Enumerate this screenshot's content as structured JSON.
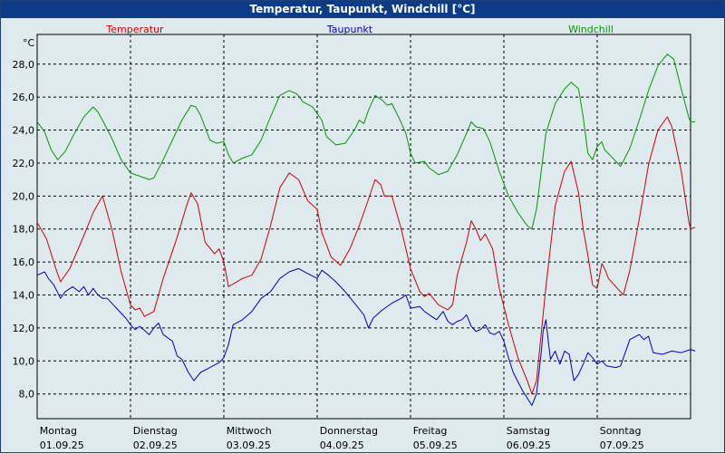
{
  "window": {
    "title": "Temperatur, Taupunkt, Windchill [°C]"
  },
  "chart_data": {
    "type": "line",
    "title": "Temperatur, Taupunkt, Windchill [°C]",
    "ylabel": "°C",
    "ylim": [
      6.5,
      29.8
    ],
    "xlim": [
      0,
      7
    ],
    "grid": true,
    "yticks": [
      8,
      10,
      12,
      14,
      16,
      18,
      20,
      22,
      24,
      26,
      28
    ],
    "ytick_labels": [
      "8,0",
      "10,0",
      "12,0",
      "14,0",
      "16,0",
      "18,0",
      "20,0",
      "22,0",
      "24,0",
      "26,0",
      "28,0"
    ],
    "x_day_labels": [
      {
        "day": "Montag",
        "date": "01.09.25"
      },
      {
        "day": "Dienstag",
        "date": "02.09.25"
      },
      {
        "day": "Mittwoch",
        "date": "03.09.25"
      },
      {
        "day": "Donnerstag",
        "date": "04.09.25"
      },
      {
        "day": "Freitag",
        "date": "05.09.25"
      },
      {
        "day": "Samstag",
        "date": "06.09.25"
      },
      {
        "day": "Sonntag",
        "date": "07.09.25"
      }
    ],
    "series": [
      {
        "name": "Temperatur",
        "color": "#cc0000",
        "points": [
          [
            0.0,
            18.4
          ],
          [
            0.1,
            17.4
          ],
          [
            0.2,
            15.6
          ],
          [
            0.25,
            14.8
          ],
          [
            0.35,
            15.6
          ],
          [
            0.5,
            17.6
          ],
          [
            0.6,
            19.0
          ],
          [
            0.7,
            20.0
          ],
          [
            0.8,
            18.0
          ],
          [
            0.9,
            15.4
          ],
          [
            1.0,
            13.4
          ],
          [
            1.05,
            13.1
          ],
          [
            1.1,
            13.2
          ],
          [
            1.15,
            12.7
          ],
          [
            1.25,
            13.0
          ],
          [
            1.35,
            15.0
          ],
          [
            1.5,
            17.5
          ],
          [
            1.6,
            19.4
          ],
          [
            1.65,
            20.2
          ],
          [
            1.72,
            19.5
          ],
          [
            1.8,
            17.2
          ],
          [
            1.9,
            16.5
          ],
          [
            1.95,
            16.8
          ],
          [
            2.0,
            16.0
          ],
          [
            2.05,
            14.5
          ],
          [
            2.2,
            15.0
          ],
          [
            2.3,
            15.2
          ],
          [
            2.4,
            16.2
          ],
          [
            2.5,
            18.2
          ],
          [
            2.6,
            20.5
          ],
          [
            2.7,
            21.4
          ],
          [
            2.8,
            21.0
          ],
          [
            2.9,
            19.7
          ],
          [
            3.0,
            19.2
          ],
          [
            3.05,
            17.8
          ],
          [
            3.15,
            16.3
          ],
          [
            3.25,
            15.8
          ],
          [
            3.35,
            16.8
          ],
          [
            3.45,
            18.2
          ],
          [
            3.55,
            19.8
          ],
          [
            3.62,
            21.0
          ],
          [
            3.68,
            20.7
          ],
          [
            3.72,
            20.0
          ],
          [
            3.8,
            20.0
          ],
          [
            3.9,
            18.0
          ],
          [
            4.0,
            15.6
          ],
          [
            4.1,
            14.2
          ],
          [
            4.15,
            13.9
          ],
          [
            4.2,
            14.1
          ],
          [
            4.3,
            13.4
          ],
          [
            4.4,
            13.1
          ],
          [
            4.45,
            13.4
          ],
          [
            4.5,
            15.2
          ],
          [
            4.6,
            17.2
          ],
          [
            4.65,
            18.5
          ],
          [
            4.7,
            18.0
          ],
          [
            4.75,
            17.3
          ],
          [
            4.8,
            17.7
          ],
          [
            4.88,
            16.8
          ],
          [
            4.95,
            14.4
          ],
          [
            5.05,
            12.2
          ],
          [
            5.15,
            10.2
          ],
          [
            5.25,
            8.8
          ],
          [
            5.3,
            8.0
          ],
          [
            5.35,
            8.8
          ],
          [
            5.45,
            14.5
          ],
          [
            5.55,
            19.4
          ],
          [
            5.65,
            21.5
          ],
          [
            5.72,
            22.1
          ],
          [
            5.8,
            20.2
          ],
          [
            5.85,
            18.0
          ],
          [
            5.9,
            16.4
          ],
          [
            5.95,
            14.6
          ],
          [
            6.0,
            14.4
          ],
          [
            6.05,
            15.9
          ],
          [
            6.08,
            15.6
          ],
          [
            6.12,
            15.0
          ],
          [
            6.2,
            14.5
          ],
          [
            6.28,
            14.0
          ],
          [
            6.35,
            15.5
          ],
          [
            6.45,
            18.6
          ],
          [
            6.55,
            21.9
          ],
          [
            6.65,
            24.0
          ],
          [
            6.75,
            24.8
          ],
          [
            6.8,
            24.2
          ],
          [
            6.9,
            21.5
          ],
          [
            6.98,
            18.5
          ],
          [
            7.0,
            18.0
          ],
          [
            7.05,
            18.1
          ]
        ]
      },
      {
        "name": "Taupunkt",
        "color": "#0000bb",
        "points": [
          [
            0.0,
            15.2
          ],
          [
            0.08,
            15.4
          ],
          [
            0.12,
            15.0
          ],
          [
            0.18,
            14.6
          ],
          [
            0.25,
            13.8
          ],
          [
            0.3,
            14.2
          ],
          [
            0.38,
            14.5
          ],
          [
            0.45,
            14.2
          ],
          [
            0.5,
            14.5
          ],
          [
            0.55,
            14.0
          ],
          [
            0.6,
            14.4
          ],
          [
            0.65,
            14.0
          ],
          [
            0.7,
            13.8
          ],
          [
            0.75,
            13.8
          ],
          [
            0.85,
            13.2
          ],
          [
            0.95,
            12.6
          ],
          [
            1.0,
            12.2
          ],
          [
            1.05,
            11.9
          ],
          [
            1.1,
            12.1
          ],
          [
            1.2,
            11.6
          ],
          [
            1.25,
            12.0
          ],
          [
            1.3,
            12.3
          ],
          [
            1.35,
            11.6
          ],
          [
            1.45,
            11.2
          ],
          [
            1.5,
            10.3
          ],
          [
            1.55,
            10.1
          ],
          [
            1.62,
            9.3
          ],
          [
            1.68,
            8.8
          ],
          [
            1.75,
            9.3
          ],
          [
            1.85,
            9.6
          ],
          [
            1.95,
            9.9
          ],
          [
            2.0,
            10.2
          ],
          [
            2.05,
            11.0
          ],
          [
            2.1,
            12.2
          ],
          [
            2.2,
            12.5
          ],
          [
            2.3,
            13.0
          ],
          [
            2.4,
            13.8
          ],
          [
            2.5,
            14.2
          ],
          [
            2.6,
            15.0
          ],
          [
            2.7,
            15.4
          ],
          [
            2.8,
            15.6
          ],
          [
            2.9,
            15.3
          ],
          [
            3.0,
            15.0
          ],
          [
            3.05,
            15.5
          ],
          [
            3.12,
            15.2
          ],
          [
            3.2,
            14.8
          ],
          [
            3.3,
            14.2
          ],
          [
            3.4,
            13.5
          ],
          [
            3.5,
            12.8
          ],
          [
            3.55,
            12.0
          ],
          [
            3.6,
            12.6
          ],
          [
            3.7,
            13.1
          ],
          [
            3.8,
            13.5
          ],
          [
            3.9,
            13.8
          ],
          [
            3.95,
            14.0
          ],
          [
            4.0,
            13.2
          ],
          [
            4.1,
            13.3
          ],
          [
            4.15,
            13.0
          ],
          [
            4.2,
            12.8
          ],
          [
            4.28,
            12.5
          ],
          [
            4.35,
            13.0
          ],
          [
            4.4,
            12.4
          ],
          [
            4.45,
            12.2
          ],
          [
            4.5,
            12.4
          ],
          [
            4.55,
            12.5
          ],
          [
            4.6,
            12.8
          ],
          [
            4.65,
            12.1
          ],
          [
            4.7,
            11.8
          ],
          [
            4.75,
            11.9
          ],
          [
            4.8,
            12.2
          ],
          [
            4.85,
            11.7
          ],
          [
            4.9,
            11.6
          ],
          [
            4.95,
            11.8
          ],
          [
            5.0,
            11.2
          ],
          [
            5.05,
            10.2
          ],
          [
            5.1,
            9.3
          ],
          [
            5.2,
            8.2
          ],
          [
            5.3,
            7.3
          ],
          [
            5.35,
            8.0
          ],
          [
            5.4,
            10.5
          ],
          [
            5.42,
            11.8
          ],
          [
            5.45,
            12.5
          ],
          [
            5.48,
            11.0
          ],
          [
            5.5,
            10.1
          ],
          [
            5.55,
            10.6
          ],
          [
            5.6,
            9.8
          ],
          [
            5.65,
            10.6
          ],
          [
            5.7,
            10.4
          ],
          [
            5.75,
            8.8
          ],
          [
            5.8,
            9.2
          ],
          [
            5.85,
            9.8
          ],
          [
            5.9,
            10.5
          ],
          [
            5.95,
            10.2
          ],
          [
            6.0,
            9.8
          ],
          [
            6.05,
            10.0
          ],
          [
            6.1,
            9.7
          ],
          [
            6.2,
            9.6
          ],
          [
            6.25,
            9.7
          ],
          [
            6.3,
            10.5
          ],
          [
            6.35,
            11.3
          ],
          [
            6.45,
            11.6
          ],
          [
            6.5,
            11.3
          ],
          [
            6.55,
            11.5
          ],
          [
            6.6,
            10.5
          ],
          [
            6.7,
            10.4
          ],
          [
            6.8,
            10.6
          ],
          [
            6.9,
            10.5
          ],
          [
            7.0,
            10.7
          ],
          [
            7.05,
            10.6
          ]
        ]
      },
      {
        "name": "Windchill",
        "color": "#009900",
        "points": [
          [
            0.0,
            24.5
          ],
          [
            0.08,
            23.9
          ],
          [
            0.15,
            22.8
          ],
          [
            0.22,
            22.2
          ],
          [
            0.3,
            22.7
          ],
          [
            0.4,
            23.8
          ],
          [
            0.5,
            24.8
          ],
          [
            0.6,
            25.4
          ],
          [
            0.65,
            25.1
          ],
          [
            0.7,
            24.6
          ],
          [
            0.8,
            23.5
          ],
          [
            0.9,
            22.2
          ],
          [
            1.0,
            21.4
          ],
          [
            1.1,
            21.2
          ],
          [
            1.2,
            21.0
          ],
          [
            1.25,
            21.1
          ],
          [
            1.35,
            22.2
          ],
          [
            1.45,
            23.4
          ],
          [
            1.55,
            24.6
          ],
          [
            1.65,
            25.5
          ],
          [
            1.7,
            25.4
          ],
          [
            1.75,
            24.9
          ],
          [
            1.85,
            23.4
          ],
          [
            1.92,
            23.2
          ],
          [
            2.0,
            23.3
          ],
          [
            2.05,
            22.5
          ],
          [
            2.1,
            22.0
          ],
          [
            2.2,
            22.3
          ],
          [
            2.3,
            22.5
          ],
          [
            2.4,
            23.4
          ],
          [
            2.5,
            24.8
          ],
          [
            2.6,
            26.1
          ],
          [
            2.7,
            26.4
          ],
          [
            2.78,
            26.2
          ],
          [
            2.85,
            25.7
          ],
          [
            2.95,
            25.4
          ],
          [
            3.0,
            25.0
          ],
          [
            3.05,
            24.6
          ],
          [
            3.1,
            23.6
          ],
          [
            3.2,
            23.1
          ],
          [
            3.3,
            23.2
          ],
          [
            3.4,
            24.0
          ],
          [
            3.45,
            24.6
          ],
          [
            3.5,
            24.4
          ],
          [
            3.55,
            25.2
          ],
          [
            3.62,
            26.1
          ],
          [
            3.7,
            25.8
          ],
          [
            3.75,
            25.5
          ],
          [
            3.8,
            25.6
          ],
          [
            3.88,
            24.7
          ],
          [
            3.95,
            23.8
          ],
          [
            4.0,
            22.6
          ],
          [
            4.05,
            22.0
          ],
          [
            4.15,
            22.1
          ],
          [
            4.2,
            21.7
          ],
          [
            4.3,
            21.3
          ],
          [
            4.4,
            21.5
          ],
          [
            4.5,
            22.5
          ],
          [
            4.6,
            23.8
          ],
          [
            4.65,
            24.5
          ],
          [
            4.7,
            24.2
          ],
          [
            4.78,
            24.1
          ],
          [
            4.85,
            23.3
          ],
          [
            4.95,
            21.5
          ],
          [
            5.05,
            20.0
          ],
          [
            5.15,
            19.0
          ],
          [
            5.25,
            18.2
          ],
          [
            5.3,
            18.0
          ],
          [
            5.35,
            19.2
          ],
          [
            5.45,
            23.8
          ],
          [
            5.55,
            25.6
          ],
          [
            5.65,
            26.5
          ],
          [
            5.72,
            26.9
          ],
          [
            5.8,
            26.5
          ],
          [
            5.85,
            24.8
          ],
          [
            5.9,
            22.6
          ],
          [
            5.95,
            22.2
          ],
          [
            6.0,
            23.0
          ],
          [
            6.05,
            23.3
          ],
          [
            6.08,
            22.8
          ],
          [
            6.15,
            22.4
          ],
          [
            6.25,
            21.8
          ],
          [
            6.35,
            22.9
          ],
          [
            6.45,
            24.6
          ],
          [
            6.55,
            26.4
          ],
          [
            6.65,
            27.9
          ],
          [
            6.75,
            28.6
          ],
          [
            6.82,
            28.3
          ],
          [
            6.9,
            26.5
          ],
          [
            6.98,
            24.8
          ],
          [
            7.0,
            24.5
          ],
          [
            7.05,
            24.5
          ]
        ]
      }
    ]
  }
}
